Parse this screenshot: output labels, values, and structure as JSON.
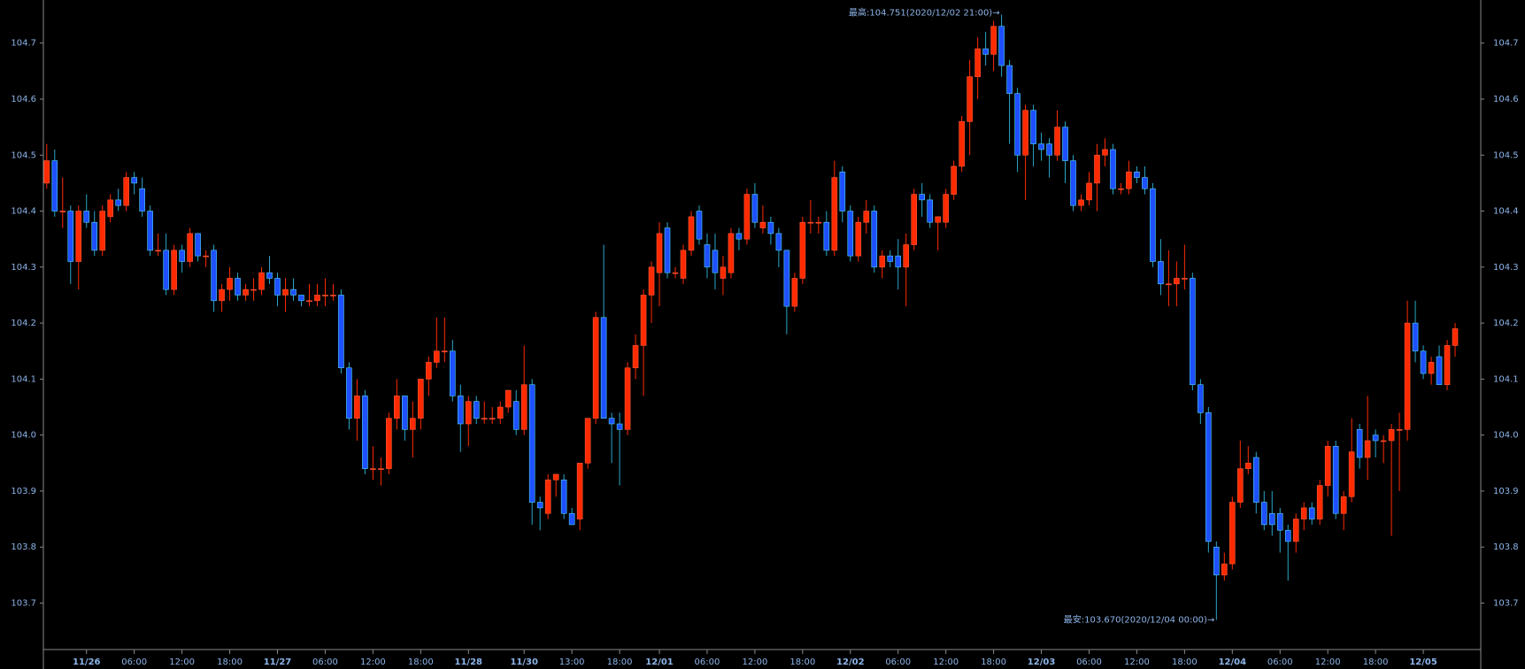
{
  "chart_data": {
    "type": "candlestick",
    "annotations": {
      "high": "最高:104.751(2020/12/02 21:00)→",
      "low": "最安:103.670(2020/12/04 00:00)→"
    },
    "up_color": "#ff2a00",
    "down_color": "#1e50ff",
    "ylim": [
      103.617,
      104.777
    ],
    "yticks": [
      103.7,
      103.8,
      103.9,
      {
        "value": 104,
        "label": "104.0"
      },
      104.1,
      104.2,
      104.3,
      104.4,
      104.5,
      104.6,
      104.7
    ],
    "categories": [
      null,
      null,
      null,
      null,
      null,
      "11/26",
      null,
      null,
      null,
      null,
      null,
      "06:00",
      null,
      null,
      null,
      null,
      null,
      "12:00",
      null,
      null,
      null,
      null,
      null,
      "18:00",
      null,
      null,
      null,
      null,
      null,
      "11/27",
      null,
      null,
      null,
      null,
      null,
      "06:00",
      null,
      null,
      null,
      null,
      null,
      "12:00",
      null,
      null,
      null,
      null,
      null,
      "18:00",
      null,
      null,
      null,
      null,
      null,
      "11/28",
      null,
      null,
      null,
      null,
      null,
      null,
      "11/30",
      null,
      null,
      null,
      null,
      null,
      "13:00",
      null,
      null,
      null,
      null,
      null,
      "18:00",
      null,
      null,
      null,
      null,
      "12/01",
      null,
      null,
      null,
      null,
      null,
      "06:00",
      null,
      null,
      null,
      null,
      null,
      "12:00",
      null,
      null,
      null,
      null,
      null,
      "18:00",
      null,
      null,
      null,
      null,
      null,
      "12/02",
      null,
      null,
      null,
      null,
      null,
      "06:00",
      null,
      null,
      null,
      null,
      null,
      "12:00",
      null,
      null,
      null,
      null,
      null,
      "18:00",
      null,
      null,
      null,
      null,
      null,
      "12/03",
      null,
      null,
      null,
      null,
      null,
      "06:00",
      null,
      null,
      null,
      null,
      null,
      "12:00",
      null,
      null,
      null,
      null,
      null,
      "18:00",
      null,
      null,
      null,
      null,
      null,
      "12/04",
      null,
      null,
      null,
      null,
      null,
      "06:00",
      null,
      null,
      null,
      null,
      null,
      "12:00",
      null,
      null,
      null,
      null,
      null,
      "18:00",
      null,
      null,
      null,
      null,
      null,
      "12/05",
      null,
      null,
      null,
      null
    ],
    "open": [
      104.45,
      104.49,
      104.4,
      104.4,
      104.31,
      104.4,
      104.38,
      104.33,
      104.39,
      104.42,
      104.41,
      104.46,
      104.44,
      104.4,
      104.33,
      104.33,
      104.26,
      104.33,
      104.31,
      104.36,
      104.32,
      104.33,
      104.24,
      104.26,
      104.28,
      104.25,
      104.26,
      104.26,
      104.29,
      104.28,
      104.25,
      104.26,
      104.25,
      104.24,
      104.24,
      104.25,
      104.25,
      104.25,
      104.12,
      104.03,
      104.07,
      103.94,
      103.94,
      103.94,
      104.03,
      104.07,
      104.01,
      104.03,
      104.1,
      104.13,
      104.15,
      104.15,
      104.07,
      104.02,
      104.06,
      104.03,
      104.03,
      104.03,
      104.05,
      104.06,
      104.01,
      104.09,
      103.88,
      103.86,
      103.92,
      103.92,
      103.86,
      103.85,
      103.95,
      104.03,
      104.21,
      104.03,
      104.02,
      104.01,
      104.12,
      104.16,
      104.25,
      104.29,
      104.37,
      104.29,
      104.28,
      104.33,
      104.4,
      104.34,
      104.33,
      104.28,
      104.29,
      104.36,
      104.35,
      104.43,
      104.37,
      104.38,
      104.36,
      104.33,
      104.23,
      104.28,
      104.38,
      104.38,
      104.38,
      104.33,
      104.47,
      104.4,
      104.32,
      104.38,
      104.4,
      104.3,
      104.32,
      104.32,
      104.3,
      104.34,
      104.43,
      104.42,
      104.38,
      104.38,
      104.43,
      104.48,
      104.56,
      104.64,
      104.69,
      104.68,
      104.73,
      104.66,
      104.61,
      104.5,
      104.58,
      104.52,
      104.52,
      104.5,
      104.55,
      104.49,
      104.41,
      104.42,
      104.45,
      104.5,
      104.51,
      104.44,
      104.44,
      104.47,
      104.46,
      104.44,
      104.31,
      104.27,
      104.27,
      104.28,
      104.28,
      104.09,
      104.04,
      103.8,
      103.75,
      103.77,
      103.88,
      103.94,
      103.96,
      103.88,
      103.86,
      103.86,
      103.83,
      103.81,
      103.85,
      103.87,
      103.85,
      103.91,
      103.98,
      103.86,
      103.89,
      104.01,
      103.96,
      104.0,
      103.99,
      103.99,
      104.01,
      104.01,
      104.2,
      104.15,
      104.11,
      104.14,
      104.09,
      104.16
    ],
    "high": [
      104.52,
      104.51,
      104.46,
      104.41,
      104.41,
      104.43,
      104.4,
      104.41,
      104.43,
      104.44,
      104.47,
      104.47,
      104.46,
      104.41,
      104.36,
      104.36,
      104.34,
      104.34,
      104.37,
      104.36,
      104.33,
      104.34,
      104.27,
      104.3,
      104.29,
      104.27,
      104.28,
      104.3,
      104.32,
      104.29,
      104.28,
      104.28,
      104.25,
      104.27,
      104.27,
      104.28,
      104.27,
      104.26,
      104.13,
      104.1,
      104.08,
      103.98,
      103.96,
      104.04,
      104.1,
      104.07,
      104.06,
      104.1,
      104.14,
      104.21,
      104.21,
      104.17,
      104.09,
      104.07,
      104.07,
      104.06,
      104.05,
      104.06,
      104.08,
      104.08,
      104.16,
      104.1,
      103.89,
      103.93,
      103.93,
      103.93,
      103.87,
      103.95,
      104.03,
      104.22,
      104.34,
      104.04,
      104.04,
      104.13,
      104.18,
      104.26,
      104.31,
      104.38,
      104.38,
      104.3,
      104.34,
      104.4,
      104.41,
      104.36,
      104.36,
      104.32,
      104.37,
      104.37,
      104.44,
      104.45,
      104.41,
      104.39,
      104.37,
      104.33,
      104.29,
      104.39,
      104.42,
      104.39,
      104.4,
      104.49,
      104.48,
      104.41,
      104.39,
      104.42,
      104.41,
      104.33,
      104.33,
      104.35,
      104.36,
      104.44,
      104.45,
      104.43,
      104.39,
      104.44,
      104.49,
      104.57,
      104.67,
      104.71,
      104.72,
      104.74,
      104.751,
      104.67,
      104.62,
      104.59,
      104.59,
      104.54,
      104.53,
      104.58,
      104.56,
      104.5,
      104.43,
      104.47,
      104.52,
      104.53,
      104.52,
      104.45,
      104.49,
      104.48,
      104.48,
      104.45,
      104.35,
      104.33,
      104.31,
      104.34,
      104.29,
      104.1,
      104.05,
      103.81,
      103.79,
      103.89,
      103.99,
      103.98,
      103.97,
      103.9,
      103.9,
      103.87,
      103.84,
      103.86,
      103.88,
      103.88,
      103.92,
      103.99,
      103.99,
      103.9,
      104.03,
      104.02,
      104.07,
      104.01,
      104.0,
      104.02,
      104.04,
      104.24,
      104.24,
      104.16,
      104.14,
      104.16,
      104.17,
      104.2
    ],
    "low": [
      104.44,
      104.39,
      104.37,
      104.27,
      104.26,
      104.37,
      104.32,
      104.32,
      104.38,
      104.4,
      104.4,
      104.43,
      104.39,
      104.32,
      104.32,
      104.25,
      104.25,
      104.29,
      104.3,
      104.31,
      104.3,
      104.22,
      104.22,
      104.24,
      104.24,
      104.24,
      104.24,
      104.25,
      104.27,
      104.23,
      104.22,
      104.24,
      104.23,
      104.23,
      104.23,
      104.23,
      104.24,
      104.11,
      104.01,
      103.99,
      103.93,
      103.92,
      103.91,
      103.93,
      104.01,
      103.99,
      103.96,
      104.01,
      104.07,
      104.12,
      104.13,
      104.06,
      103.97,
      103.98,
      104.02,
      104.02,
      104.02,
      104.02,
      104.04,
      104.0,
      104.0,
      103.84,
      103.83,
      103.85,
      103.89,
      103.85,
      103.84,
      103.83,
      103.94,
      104.02,
      104.03,
      103.95,
      103.91,
      104.0,
      104.1,
      104.07,
      104.2,
      104.23,
      104.28,
      104.28,
      104.27,
      104.32,
      104.34,
      104.28,
      104.26,
      104.25,
      104.28,
      104.33,
      104.34,
      104.37,
      104.36,
      104.34,
      104.3,
      104.18,
      104.22,
      104.27,
      104.36,
      104.36,
      104.32,
      104.32,
      104.38,
      104.31,
      104.31,
      104.36,
      104.29,
      104.28,
      104.3,
      104.26,
      104.23,
      104.33,
      104.39,
      104.37,
      104.33,
      104.37,
      104.42,
      104.47,
      104.5,
      104.6,
      104.66,
      104.65,
      104.64,
      104.52,
      104.47,
      104.42,
      104.48,
      104.49,
      104.46,
      104.49,
      104.45,
      104.4,
      104.4,
      104.41,
      104.4,
      104.48,
      104.43,
      104.43,
      104.43,
      104.45,
      104.43,
      104.3,
      104.25,
      104.23,
      104.23,
      104.26,
      104.08,
      104.02,
      103.79,
      103.67,
      103.74,
      103.76,
      103.87,
      103.93,
      103.86,
      103.83,
      103.82,
      103.79,
      103.74,
      103.79,
      103.83,
      103.84,
      103.84,
      103.89,
      103.85,
      103.83,
      103.88,
      103.94,
      103.92,
      103.96,
      103.95,
      103.82,
      103.9,
      103.99,
      104.13,
      104.1,
      104.09,
      104.09,
      104.08,
      104.14
    ],
    "close": [
      104.49,
      104.4,
      104.4,
      104.31,
      104.4,
      104.38,
      104.33,
      104.4,
      104.42,
      104.41,
      104.46,
      104.45,
      104.4,
      104.33,
      104.33,
      104.26,
      104.33,
      104.31,
      104.36,
      104.32,
      104.32,
      104.24,
      104.26,
      104.28,
      104.25,
      104.26,
      104.26,
      104.29,
      104.28,
      104.25,
      104.26,
      104.25,
      104.24,
      104.24,
      104.25,
      104.25,
      104.25,
      104.12,
      104.03,
      104.07,
      103.94,
      103.94,
      103.94,
      104.03,
      104.07,
      104.01,
      104.03,
      104.1,
      104.13,
      104.15,
      104.15,
      104.07,
      104.02,
      104.06,
      104.03,
      104.03,
      104.03,
      104.05,
      104.08,
      104.01,
      104.09,
      103.88,
      103.87,
      103.92,
      103.93,
      103.86,
      103.84,
      103.95,
      104.03,
      104.21,
      104.03,
      104.02,
      104.01,
      104.12,
      104.16,
      104.25,
      104.3,
      104.36,
      104.29,
      104.29,
      104.33,
      104.39,
      104.35,
      104.3,
      104.29,
      104.3,
      104.36,
      104.35,
      104.43,
      104.38,
      104.38,
      104.36,
      104.33,
      104.23,
      104.28,
      104.38,
      104.38,
      104.38,
      104.33,
      104.46,
      104.4,
      104.32,
      104.38,
      104.4,
      104.3,
      104.32,
      104.31,
      104.3,
      104.34,
      104.43,
      104.42,
      104.38,
      104.39,
      104.43,
      104.48,
      104.56,
      104.64,
      104.69,
      104.68,
      104.73,
      104.66,
      104.61,
      104.5,
      104.58,
      104.52,
      104.51,
      104.5,
      104.55,
      104.49,
      104.41,
      104.42,
      104.45,
      104.5,
      104.51,
      104.44,
      104.44,
      104.47,
      104.46,
      104.44,
      104.31,
      104.27,
      104.27,
      104.28,
      104.28,
      104.09,
      104.04,
      103.81,
      103.75,
      103.77,
      103.88,
      103.94,
      103.95,
      103.88,
      103.84,
      103.84,
      103.83,
      103.81,
      103.85,
      103.87,
      103.85,
      103.91,
      103.98,
      103.86,
      103.89,
      103.97,
      103.96,
      103.99,
      103.99,
      103.99,
      104.01,
      104.01,
      104.2,
      104.15,
      104.11,
      104.13,
      104.09,
      104.16,
      104.19
    ]
  }
}
